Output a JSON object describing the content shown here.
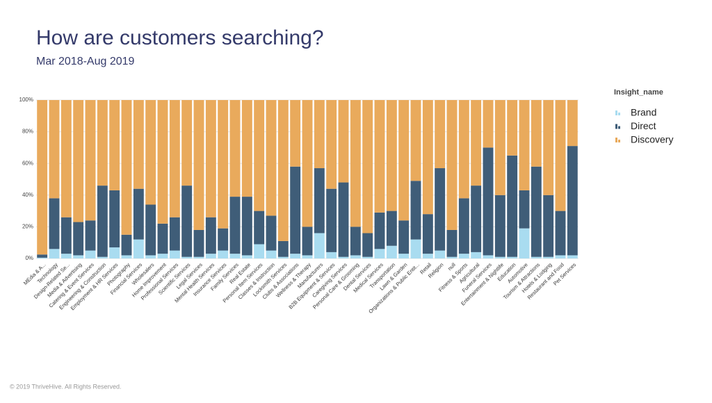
{
  "chart_data": {
    "type": "stacked_bar_100",
    "title": "How are customers searching?",
    "subtitle": "Mar 2018-Aug 2019",
    "legend_title": "Insight_name",
    "legend_position": "right",
    "grid": true,
    "ylim": [
      0,
      100
    ],
    "yticks": [
      {
        "value": 0,
        "label": "0%"
      },
      {
        "value": 20,
        "label": "20%"
      },
      {
        "value": 40,
        "label": "40%"
      },
      {
        "value": 60,
        "label": "60%"
      },
      {
        "value": 80,
        "label": "80%"
      },
      {
        "value": 100,
        "label": "100%"
      }
    ],
    "categories": [
      "MEdia & A...",
      "Technology",
      "Design-Related Se...",
      "Media & Advertising",
      "Catering & Event Services",
      "Engineering & Construction",
      "Employment & HR Services",
      "Photography",
      "Financial Services",
      "Wholesalers",
      "Home Improvement",
      "Professional Services",
      "Scientific Services",
      "Legal Services",
      "Mental Health Services",
      "Insurance Services",
      "Family Services",
      "Real Estate",
      "Personal Item Services",
      "Classes & Instruction",
      "Locksmith Services",
      "Clubs & Associations",
      "Wellness & Therapy",
      "Manufacturers",
      "B2B Equipment & Services",
      "Caregiving Services",
      "Personal Care & Grooming",
      "Dental Services",
      "Medical Services",
      "Transportation",
      "Lawn & Garden",
      "Organizations & Public Entit...",
      "Retail",
      "Religion",
      "null",
      "Fitness & Sports",
      "Agricultural",
      "Funeral Services",
      "Entertainment & Nightlife",
      "Education",
      "Automotive",
      "Tourism & Attractions",
      "Hotels & Lodging",
      "Restaurant and Food",
      "Pet Services"
    ],
    "series": [
      {
        "name": "Brand",
        "color": "#a9dcf0",
        "values": [
          0.5,
          6,
          3,
          2,
          5,
          1,
          7,
          2,
          12,
          2,
          3,
          5,
          1,
          1,
          3,
          5,
          3,
          2,
          9,
          5,
          1,
          3,
          2,
          16,
          4,
          1,
          2,
          1,
          6,
          8,
          3,
          12,
          3,
          5,
          1,
          3,
          4,
          2,
          1,
          1,
          19,
          1,
          1,
          2,
          2
        ]
      },
      {
        "name": "Direct",
        "color": "#3f5d78",
        "values": [
          2,
          32,
          23,
          21,
          19,
          45,
          36,
          13,
          32,
          32,
          19,
          21,
          45,
          17,
          23,
          14,
          36,
          37,
          21,
          22,
          10,
          55,
          18,
          41,
          40,
          47,
          18,
          15,
          23,
          22,
          21,
          37,
          25,
          52,
          17,
          35,
          42,
          68,
          39,
          64,
          24,
          57,
          39,
          28,
          69
        ]
      },
      {
        "name": "Discovery",
        "color": "#e9aa5c",
        "values": [
          97.5,
          62,
          74,
          77,
          76,
          54,
          57,
          85,
          56,
          66,
          78,
          74,
          54,
          82,
          74,
          81,
          61,
          61,
          70,
          73,
          89,
          42,
          80,
          43,
          56,
          52,
          80,
          84,
          71,
          70,
          76,
          51,
          72,
          43,
          82,
          62,
          54,
          30,
          60,
          35,
          57,
          42,
          60,
          70,
          29
        ]
      }
    ]
  },
  "footer": "© 2019 ThriveHive. All Rights Reserved."
}
